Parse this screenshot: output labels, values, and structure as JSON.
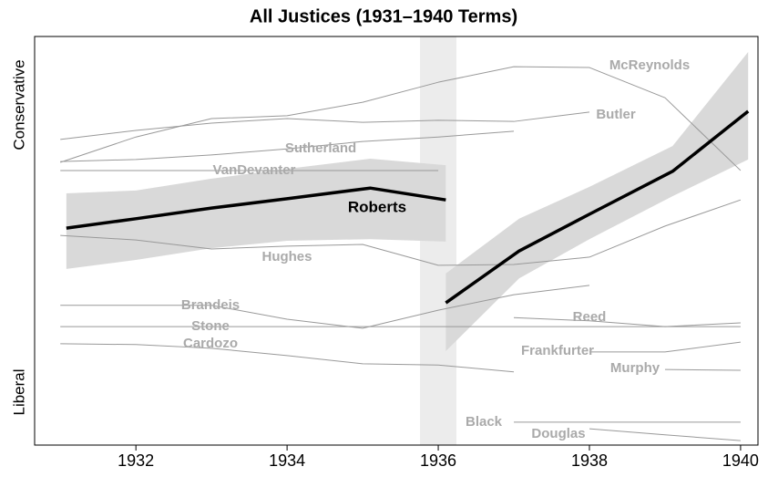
{
  "chart_data": {
    "type": "line",
    "title": "All Justices (1931–1940 Terms)",
    "ylabel_top": "Conservative",
    "ylabel_bottom": "Liberal",
    "xlim": [
      1930.66,
      1940.23
    ],
    "ylim": [
      0,
      100
    ],
    "xticks": [
      1932,
      1934,
      1936,
      1938,
      1940
    ],
    "series": [
      {
        "name": "Roberts",
        "color": "#000000",
        "band_color": "#d9d9d9",
        "x": [
          1931.08,
          1932,
          1933,
          1934,
          1935.1,
          1936.1,
          1936.1,
          1936.1,
          1937.07,
          1938,
          1939.1,
          1940.1
        ],
        "values": [
          53.1,
          55.4,
          58.0,
          60.3,
          62.9,
          60.0,
          null,
          34.8,
          47.5,
          56.5,
          67.0,
          81.7
        ],
        "lower": [
          43.1,
          45.3,
          48.2,
          50.0,
          50.4,
          49.8,
          null,
          23.0,
          40.8,
          50.4,
          60.9,
          69.9
        ],
        "upper": [
          61.6,
          62.3,
          65.2,
          67.6,
          70.1,
          68.5,
          null,
          42.0,
          55.4,
          63.2,
          73.2,
          96.2
        ]
      },
      {
        "name": "McReynolds",
        "color": "#999999",
        "x": [
          1931,
          1932,
          1933,
          1934,
          1935,
          1936,
          1937,
          1938,
          1939,
          1940
        ],
        "values": [
          69.2,
          75.4,
          79.9,
          80.6,
          83.9,
          88.8,
          92.6,
          92.4,
          85.0,
          67.2
        ]
      },
      {
        "name": "Butler",
        "color": "#999999",
        "x": [
          1931,
          1932,
          1933,
          1934,
          1935,
          1936,
          1937,
          1938
        ],
        "values": [
          74.8,
          77.0,
          78.8,
          79.9,
          79.0,
          79.5,
          79.2,
          81.5
        ]
      },
      {
        "name": "Sutherland",
        "color": "#999999",
        "x": [
          1931,
          1932,
          1933,
          1934,
          1935,
          1936,
          1937
        ],
        "values": [
          69.4,
          69.9,
          71.0,
          72.5,
          74.3,
          75.4,
          76.8
        ]
      },
      {
        "name": "VanDevanter",
        "color": "#999999",
        "x": [
          1931,
          1932,
          1933,
          1934,
          1935,
          1936
        ],
        "values": [
          67.2,
          67.2,
          67.2,
          67.2,
          67.2,
          67.2
        ]
      },
      {
        "name": "Hughes",
        "color": "#999999",
        "x": [
          1931,
          1932,
          1933,
          1934,
          1935,
          1936,
          1937,
          1938,
          1939,
          1940
        ],
        "values": [
          51.3,
          50.2,
          48.0,
          48.7,
          49.1,
          44.0,
          44.2,
          46.0,
          53.6,
          60.0
        ]
      },
      {
        "name": "Brandeis",
        "color": "#999999",
        "x": [
          1931,
          1932,
          1933,
          1934,
          1935,
          1936,
          1937,
          1938
        ],
        "values": [
          34.2,
          34.2,
          34.2,
          30.8,
          28.6,
          33.0,
          36.8,
          39.1
        ]
      },
      {
        "name": "Stone",
        "color": "#999999",
        "x": [
          1931,
          1932,
          1933,
          1934,
          1935,
          1936,
          1937,
          1938,
          1939,
          1940
        ],
        "values": [
          29.0,
          29.0,
          29.0,
          29.0,
          29.0,
          29.0,
          29.0,
          29.0,
          29.0,
          29.0
        ]
      },
      {
        "name": "Cardozo",
        "color": "#999999",
        "x": [
          1931,
          1932,
          1933,
          1934,
          1935,
          1936,
          1937
        ],
        "values": [
          24.8,
          24.6,
          23.7,
          21.9,
          19.9,
          19.6,
          17.9
        ]
      },
      {
        "name": "Reed",
        "color": "#999999",
        "x": [
          1937,
          1938,
          1939,
          1940
        ],
        "values": [
          31.2,
          30.4,
          29.0,
          29.9
        ]
      },
      {
        "name": "Frankfurter",
        "color": "#999999",
        "x": [
          1938,
          1939,
          1940
        ],
        "values": [
          22.8,
          22.8,
          25.2
        ]
      },
      {
        "name": "Murphy",
        "color": "#999999",
        "x": [
          1939,
          1940
        ],
        "values": [
          18.5,
          18.3
        ]
      },
      {
        "name": "Black",
        "color": "#999999",
        "x": [
          1937,
          1938,
          1939,
          1940
        ],
        "values": [
          5.6,
          5.6,
          5.6,
          5.6
        ]
      },
      {
        "name": "Douglas",
        "color": "#999999",
        "x": [
          1938,
          1939,
          1940
        ],
        "values": [
          4.0,
          2.5,
          1.1
        ]
      }
    ]
  }
}
